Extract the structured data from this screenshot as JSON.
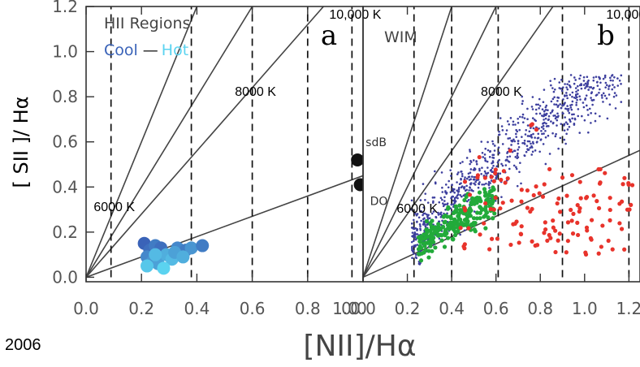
{
  "year_label": "2006",
  "colors": {
    "cool": "#3a63b8",
    "hot": "#5bd3f0",
    "wim_blue": "#3d3f9e",
    "wim_green": "#22aa3a",
    "wim_red": "#e8332b",
    "black_points": "#111111"
  },
  "chart_data": [
    {
      "type": "scatter",
      "panel_label": "a",
      "title_line1": "HII Regions",
      "legend_cool": "Cool",
      "legend_dash": "—",
      "legend_hot": "Hot",
      "xlabel": "[NII]/Hα",
      "ylabel": "[ SII ]/ Hα",
      "xlim": [
        0.0,
        1.0
      ],
      "ylim": [
        -0.02,
        1.2
      ],
      "xticks": [
        "0.0",
        "0.2",
        "0.4",
        "0.6",
        "0.8",
        "1.0"
      ],
      "yticks": [
        "0.0",
        "0.2",
        "0.4",
        "0.6",
        "0.8",
        "1.0",
        "1.2"
      ],
      "temperature_lines": [
        {
          "label": "6000 K",
          "x": 0.09
        },
        {
          "label": "8000 K",
          "x": 0.6
        },
        {
          "label": "10,000 K",
          "x": 0.96
        }
      ],
      "extra_dashed_lines_x": [
        0.38,
        0.8
      ],
      "ratio_lines_slope": [
        3.0,
        2.0,
        1.4,
        0.45
      ],
      "series": [
        {
          "name": "Cool — Hot",
          "points": [
            [
              0.21,
              0.15,
              0
            ],
            [
              0.23,
              0.12,
              1
            ],
            [
              0.25,
              0.14,
              2
            ],
            [
              0.27,
              0.13,
              1
            ],
            [
              0.22,
              0.09,
              3
            ],
            [
              0.24,
              0.07,
              4
            ],
            [
              0.26,
              0.06,
              5
            ],
            [
              0.29,
              0.1,
              6
            ],
            [
              0.31,
              0.08,
              7
            ],
            [
              0.33,
              0.13,
              3
            ],
            [
              0.36,
              0.12,
              2
            ],
            [
              0.38,
              0.13,
              4
            ],
            [
              0.42,
              0.14,
              2
            ],
            [
              0.22,
              0.05,
              8
            ],
            [
              0.28,
              0.04,
              9
            ],
            [
              0.32,
              0.11,
              5
            ],
            [
              0.35,
              0.09,
              6
            ],
            [
              0.25,
              0.1,
              7
            ]
          ]
        },
        {
          "name": "sdB",
          "points": [
            [
              0.98,
              0.52
            ]
          ]
        },
        {
          "name": "DO",
          "points": [
            [
              0.99,
              0.41
            ]
          ]
        }
      ]
    },
    {
      "type": "scatter",
      "panel_label": "b",
      "title_line1": "WIM",
      "xlabel": "[NII]/Hα",
      "xlim": [
        0.0,
        1.25
      ],
      "ylim": [
        -0.02,
        1.2
      ],
      "xticks": [
        "0.0",
        "0.2",
        "0.4",
        "0.6",
        "0.8",
        "1.0",
        "1.2"
      ],
      "temperature_lines": [
        {
          "label": "6000 K",
          "x": 0.23
        },
        {
          "label": "8000 K",
          "x": 0.61
        },
        {
          "label": "10,000 K",
          "x": 1.2
        }
      ],
      "extra_dashed_lines_x": [
        0.4,
        0.9
      ],
      "ratio_lines_slope": [
        3.0,
        2.0,
        1.4,
        0.45
      ],
      "series": [
        {
          "name": "WIM blue",
          "generated": true
        },
        {
          "name": "WIM green",
          "generated": true
        },
        {
          "name": "WIM red",
          "generated": true
        }
      ]
    }
  ]
}
